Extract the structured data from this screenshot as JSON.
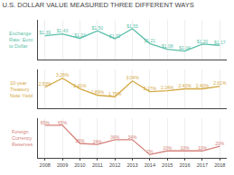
{
  "chart_data": [
    {
      "type": "line",
      "title": "U.S. DOLLAR VALUE MEASURED THREE DIFFERENT WAYS",
      "x": [
        2008,
        2009,
        2010,
        2011,
        2012,
        2013,
        2014,
        2015,
        2016,
        2017,
        2018
      ],
      "series": [
        {
          "name": "Exchange\nRate: Euro\nto Dollar",
          "color": "#5bbfaa",
          "values": [
            1.39,
            1.43,
            1.33,
            1.5,
            1.32,
            1.55,
            1.21,
            1.08,
            1.04,
            1.2,
            1.17
          ],
          "value_labels": [
            "$1.39",
            "$1.43",
            "$1.33",
            "$1.50",
            "$1.32",
            "$1.55",
            "$1.21",
            "$1.08",
            "$1.04",
            "$1.20",
            "$1.17"
          ]
        }
      ],
      "xlim": [
        2007.6,
        2018.4
      ],
      "xticks": [
        2008,
        2009,
        2010,
        2011,
        2012,
        2013,
        2014,
        2015,
        2016,
        2017,
        2018
      ],
      "ylim": [
        0.85,
        1.75
      ],
      "grid": true,
      "data_labels": true,
      "tick_labels": false
    },
    {
      "type": "line",
      "x": [
        2008,
        2009,
        2010,
        2011,
        2012,
        2013,
        2014,
        2015,
        2016,
        2017,
        2018
      ],
      "series": [
        {
          "name": "10-year\nTreasury\nNote Yield",
          "color": "#d4a843",
          "values": [
            2.53,
            3.26,
            2.41,
            1.89,
            1.76,
            3.04,
            2.17,
            2.24,
            2.4,
            2.4,
            2.61
          ],
          "value_labels": [
            "2.53%",
            "3.26%",
            "2.41%",
            "1.89%",
            "1.76%",
            "3.04%",
            "2.17%",
            "2.24%",
            "2.40%",
            "2.40%",
            "2.61%"
          ]
        }
      ],
      "xlim": [
        2007.6,
        2018.4
      ],
      "xticks": [
        2008,
        2009,
        2010,
        2011,
        2012,
        2013,
        2014,
        2015,
        2016,
        2017,
        2018
      ],
      "ylim": [
        0.8,
        4.0
      ],
      "grid": true,
      "data_labels": true,
      "tick_labels": false
    },
    {
      "type": "line",
      "x": [
        2008,
        2009,
        2010,
        2011,
        2012,
        2013,
        2014,
        2015,
        2016,
        2017,
        2018
      ],
      "series": [
        {
          "name": "Foreign\nCurrency\nReserves",
          "color": "#d4827a",
          "values": [
            65,
            65,
            26,
            24,
            34,
            34,
            2,
            10,
            10,
            10,
            20
          ],
          "value_labels": [
            "65%",
            "65%",
            "26%",
            "24%",
            "34%",
            "34%",
            "2%",
            "10%",
            "10%",
            "10%",
            "20%"
          ]
        }
      ],
      "xlim": [
        2007.6,
        2018.4
      ],
      "xticks": [
        2008,
        2009,
        2010,
        2011,
        2012,
        2013,
        2014,
        2015,
        2016,
        2017,
        2018
      ],
      "ylim": [
        -5,
        80
      ],
      "grid": true,
      "data_labels": true,
      "tick_labels": "x"
    }
  ]
}
